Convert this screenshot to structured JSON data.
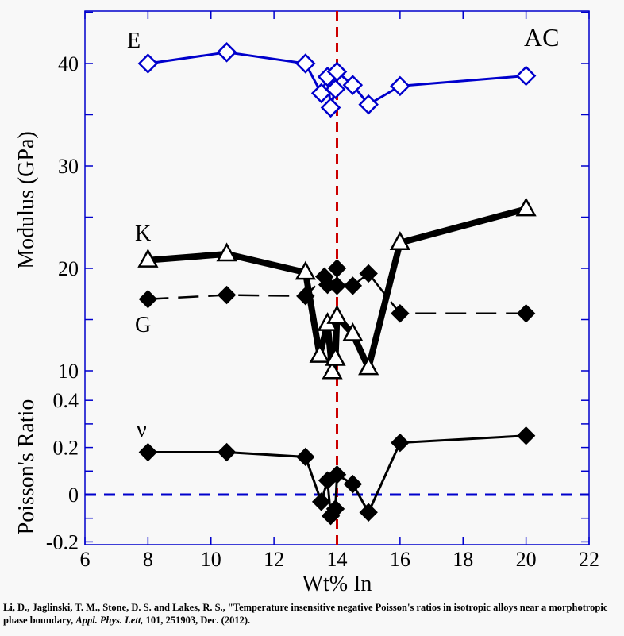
{
  "chart_data": [
    {
      "type": "line",
      "panel": "top",
      "ylabel": "Modulus (GPa)",
      "ylim": [
        10,
        45
      ],
      "yticks": [
        10,
        20,
        30,
        40
      ],
      "xlim": [
        6,
        22
      ],
      "annotations": [
        "AC"
      ],
      "series": [
        {
          "name": "E",
          "color": "#0000cc",
          "marker": "open-diamond",
          "x": [
            8,
            10.5,
            13,
            13.5,
            13.7,
            13.8,
            13.95,
            14.0,
            14.5,
            15,
            16,
            20
          ],
          "y": [
            40.0,
            41.1,
            40.0,
            37.1,
            38.7,
            35.7,
            37.5,
            39.2,
            37.9,
            36.0,
            37.8,
            38.8
          ]
        },
        {
          "name": "K",
          "color": "#000000",
          "marker": "open-triangle",
          "x": [
            8,
            10.5,
            13,
            13.45,
            13.7,
            13.85,
            13.95,
            14.0,
            14.5,
            15,
            16,
            20
          ],
          "y": [
            20.8,
            21.4,
            19.6,
            11.5,
            14.6,
            9.9,
            11.2,
            15.3,
            13.6,
            10.3,
            22.5,
            25.8
          ]
        },
        {
          "name": "G",
          "color": "#000000",
          "marker": "filled-diamond",
          "dashed": true,
          "x": [
            8,
            10.5,
            13,
            13.6,
            13.7,
            14.0,
            14.0,
            14.5,
            15,
            16,
            20
          ],
          "y": [
            17.0,
            17.4,
            17.3,
            19.2,
            18.4,
            20.0,
            18.3,
            18.3,
            19.5,
            15.6,
            15.6
          ]
        }
      ]
    },
    {
      "type": "line",
      "panel": "bottom",
      "ylabel": "Poisson's Ratio",
      "xlabel": "Wt% In",
      "ylim": [
        -0.2,
        0.4
      ],
      "yticks": [
        "-0.2",
        "0",
        "0.2",
        "0.4"
      ],
      "xlim": [
        6,
        22
      ],
      "xticks": [
        6,
        8,
        10,
        12,
        14,
        16,
        18,
        20,
        22
      ],
      "series": [
        {
          "name": "ν",
          "color": "#000000",
          "marker": "filled-diamond",
          "x": [
            8,
            10.5,
            13,
            13.5,
            13.7,
            13.8,
            13.95,
            14.0,
            14.5,
            15,
            16,
            20
          ],
          "y": [
            0.18,
            0.18,
            0.16,
            -0.03,
            0.06,
            -0.09,
            -0.06,
            0.085,
            0.045,
            -0.075,
            0.22,
            0.25
          ]
        }
      ]
    }
  ],
  "reference_lines": {
    "vertical_x": 14,
    "vertical_color": "#cc0000",
    "horizontal_y": 0,
    "horizontal_color": "#0000cc"
  },
  "caption": {
    "authors": "Li, D., Jaglinski, T. M., Stone, D. S. and Lakes, R. S., \"Temperature insensitive negative Poisson's ratios in isotropic alloys near a morphotropic phase boundary,",
    "journal": "Appl. Phys. Lett,",
    "rest": "101, 251903, Dec. (2012)."
  }
}
